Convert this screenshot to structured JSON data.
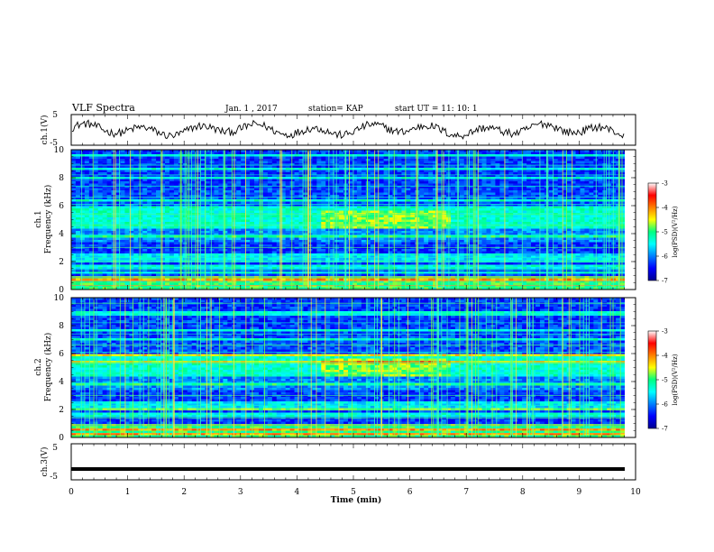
{
  "header": {
    "title": "VLF Spectra",
    "date": "Jan. 1 , 2017",
    "station": "station= KAP",
    "start": "start UT = 11: 10: 1"
  },
  "chart_data": [
    {
      "type": "line",
      "panel": "ch1-waveform",
      "ylabel": "ch.1(V)",
      "ylim": [
        -5,
        5
      ],
      "yticks": [
        "5",
        "-5"
      ],
      "xlim": [
        0,
        10
      ]
    },
    {
      "type": "heatmap",
      "panel": "ch1-spectrogram",
      "ylabel": "ch.1 Frequency (kHz)",
      "ylim": [
        0,
        10
      ],
      "yticks": [
        "0",
        "2",
        "4",
        "6",
        "8",
        "10"
      ],
      "xlim": [
        0,
        10
      ],
      "colorbar": {
        "label": "log(PSD)(V²/Hz)",
        "range": [
          -7,
          -3
        ],
        "ticks": [
          "-3",
          "-4",
          "-5",
          "-6",
          "-7"
        ]
      }
    },
    {
      "type": "heatmap",
      "panel": "ch2-spectrogram",
      "ylabel": "ch.2 Frequency (kHz)",
      "ylim": [
        0,
        10
      ],
      "yticks": [
        "0",
        "2",
        "4",
        "6",
        "8",
        "10"
      ],
      "xlim": [
        0,
        10
      ],
      "colorbar": {
        "label": "log(PSD)(V²/Hz)",
        "range": [
          -7,
          -3
        ],
        "ticks": [
          "-3",
          "-4",
          "-5",
          "-6",
          "-7"
        ]
      }
    },
    {
      "type": "line",
      "panel": "ch3-waveform",
      "ylabel": "ch.3(V)",
      "ylim": [
        -5,
        5
      ],
      "yticks": [
        "5",
        "-5"
      ],
      "xlim": [
        0,
        10
      ],
      "xlabel": "Time (min)",
      "xticks": [
        "0",
        "1",
        "2",
        "3",
        "4",
        "5",
        "6",
        "7",
        "8",
        "9",
        "10"
      ],
      "constant_value": -2
    }
  ],
  "colors": {
    "low": "#00008f",
    "mid": "#00ff80",
    "high": "#ff0000"
  }
}
